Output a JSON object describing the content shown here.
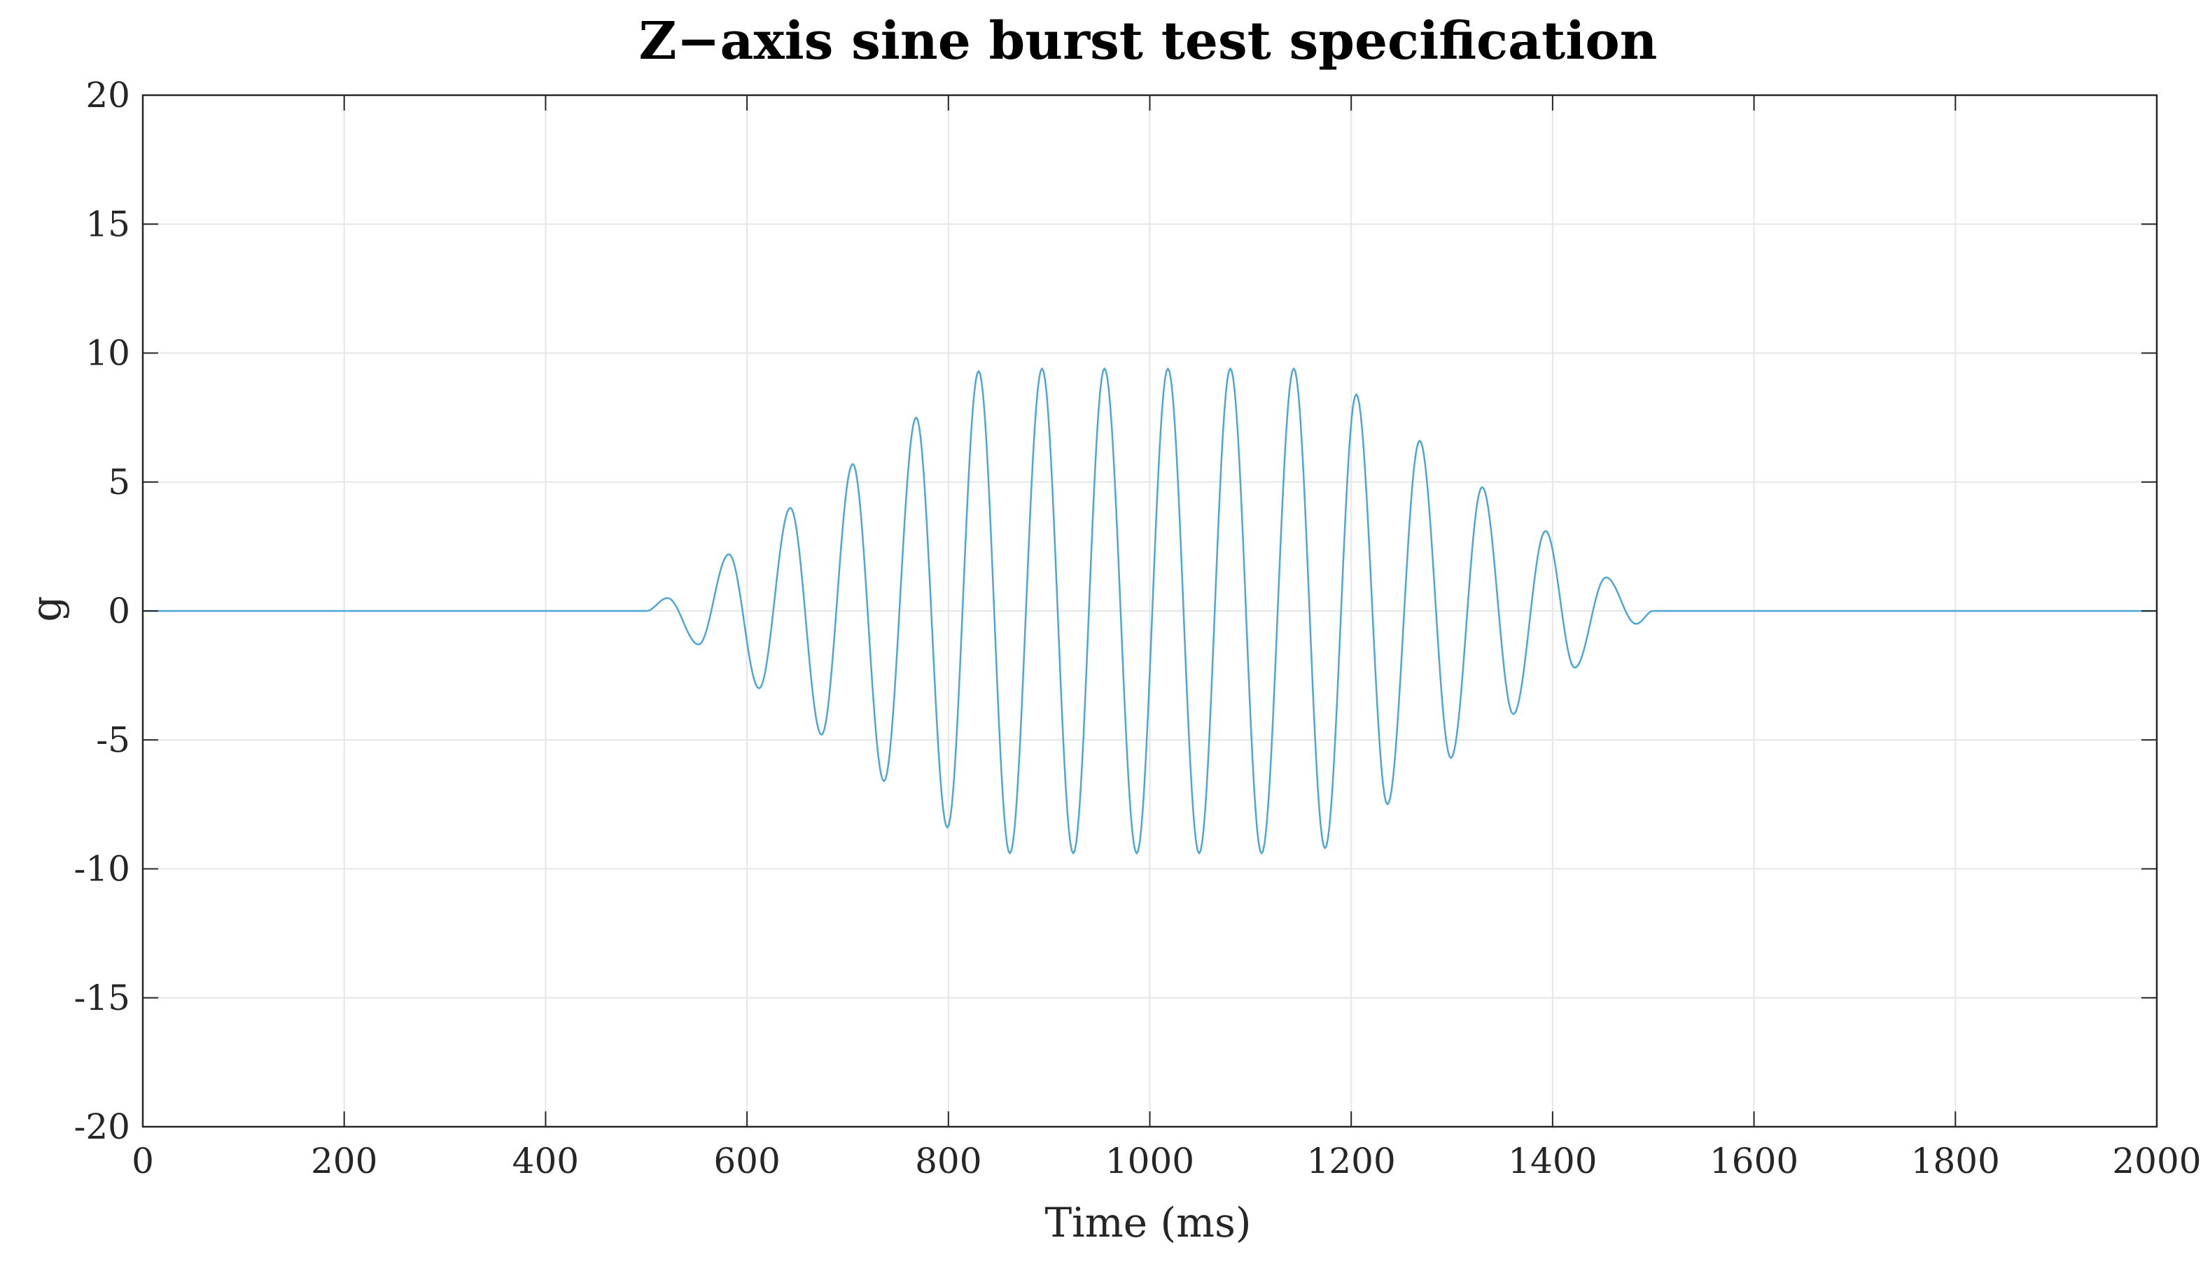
{
  "chart_data": {
    "type": "line",
    "title": "Z−axis sine burst test specification",
    "xlabel": "Time (ms)",
    "ylabel": "g",
    "xlim": [
      0,
      2000
    ],
    "ylim": [
      -20,
      20
    ],
    "xticks": [
      0,
      200,
      400,
      600,
      800,
      1000,
      1200,
      1400,
      1600,
      1800,
      2000
    ],
    "yticks": [
      20,
      15,
      10,
      5,
      0,
      -5,
      -10,
      -15,
      -20
    ],
    "xtick_labels": [
      "0",
      "200",
      "400",
      "600",
      "800",
      "1000",
      "1200",
      "1400",
      "1600",
      "1800",
      "2000"
    ],
    "ytick_labels": [
      "20",
      "15",
      "10",
      "5",
      "0",
      "-5",
      "-10",
      "-15",
      "-20"
    ],
    "grid": true,
    "series_color": "#4DA6D6",
    "series": [
      {
        "x": [
          0,
          500,
          521,
          552,
          582,
          612,
          643,
          674,
          705,
          736,
          768,
          799,
          830,
          861,
          893,
          924,
          955,
          987,
          1018,
          1049,
          1080,
          1111,
          1143,
          1174,
          1205,
          1236,
          1268,
          1299,
          1330,
          1361,
          1393,
          1422,
          1453,
          1483,
          1500,
          2000
        ],
        "y": [
          0,
          0,
          0.5,
          -1.3,
          2.2,
          -3.0,
          4.0,
          -4.8,
          5.7,
          -6.6,
          7.5,
          -8.4,
          9.3,
          -9.4,
          9.4,
          -9.4,
          9.4,
          -9.4,
          9.4,
          -9.4,
          9.4,
          -9.4,
          9.4,
          -9.2,
          8.4,
          -7.5,
          6.6,
          -5.7,
          4.8,
          -4.0,
          3.1,
          -2.2,
          1.3,
          -0.5,
          0,
          0
        ]
      }
    ]
  }
}
